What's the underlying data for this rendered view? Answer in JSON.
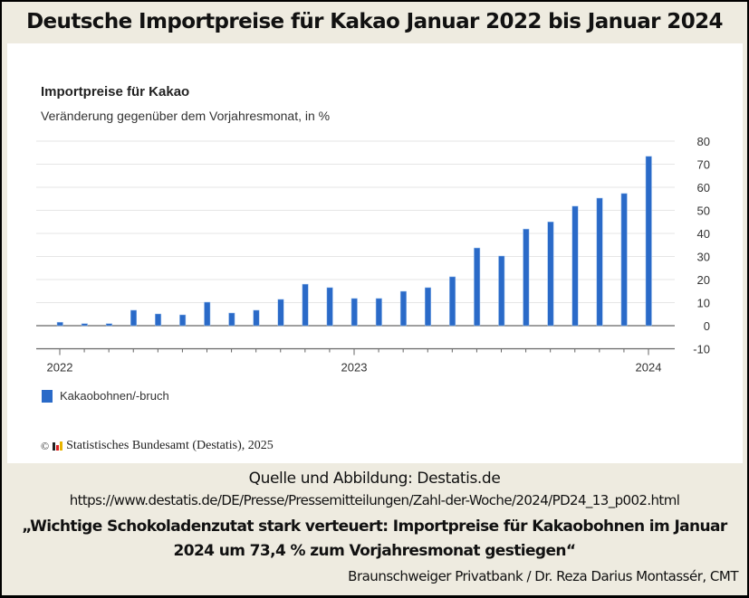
{
  "header": {
    "title": "Deutsche Importpreise für Kakao Januar 2022 bis Januar 2024"
  },
  "chart": {
    "title": "Importpreise für Kakao",
    "subtitle": "Veränderung gegenüber dem Vorjahresmonat, in %",
    "legend_label": "Kakaobohnen/-bruch",
    "copyright": "Statistisches Bundesamt (Destatis), 2025",
    "copyright_symbol": "©",
    "bar_color": "#2a6ac8"
  },
  "chart_data": {
    "type": "bar",
    "title": "Importpreise für Kakao",
    "subtitle": "Veränderung gegenüber dem Vorjahresmonat, in %",
    "xlabel": "",
    "ylabel": "Veränderung gegenüber dem Vorjahresmonat, in %",
    "ylim": [
      -10,
      80
    ],
    "yticks": [
      80,
      70,
      60,
      50,
      40,
      30,
      20,
      10,
      0,
      -10
    ],
    "xtick_labels": [
      "2022",
      "2023",
      "2024"
    ],
    "grid": true,
    "legend_position": "bottom-left",
    "categories": [
      "2022-01",
      "2022-02",
      "2022-03",
      "2022-04",
      "2022-05",
      "2022-06",
      "2022-07",
      "2022-08",
      "2022-09",
      "2022-10",
      "2022-11",
      "2022-12",
      "2023-01",
      "2023-02",
      "2023-03",
      "2023-04",
      "2023-05",
      "2023-06",
      "2023-07",
      "2023-08",
      "2023-09",
      "2023-10",
      "2023-11",
      "2023-12",
      "2024-01"
    ],
    "series": [
      {
        "name": "Kakaobohnen/-bruch",
        "color": "#2a6ac8",
        "values": [
          1.5,
          0.9,
          0.9,
          6.7,
          5.1,
          4.7,
          10.2,
          5.5,
          6.7,
          11.4,
          18.0,
          16.5,
          11.8,
          11.8,
          14.9,
          16.5,
          21.2,
          33.7,
          30.2,
          41.9,
          45.0,
          51.8,
          55.3,
          57.3,
          73.4
        ]
      }
    ]
  },
  "footer": {
    "source": "Quelle und Abbildung: Destatis.de",
    "url": "https://www.destatis.de/DE/Presse/Pressemitteilungen/Zahl-der-Woche/2024/PD24_13_p002.html",
    "quote": "„Wichtige Schokoladenzutat stark verteuert: Importpreise für Kakaobohnen im Januar 2024 um 73,4 % zum Vorjahresmonat gestiegen“",
    "author": "Braunschweiger Privatbank / Dr. Reza Darius Montassér, CMT"
  }
}
